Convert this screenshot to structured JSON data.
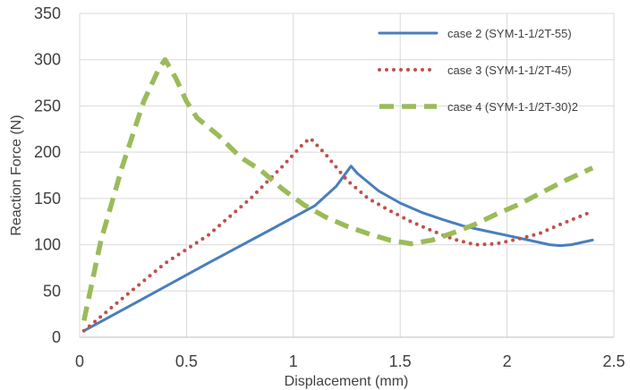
{
  "chart_data": {
    "type": "line",
    "title": "",
    "xlabel": "Displacement (mm)",
    "ylabel": "Reaction Force (N)",
    "xlim": [
      0,
      2.5
    ],
    "ylim": [
      0,
      350
    ],
    "xticks": [
      "0",
      "0.5",
      "1",
      "1.5",
      "2",
      "2.5"
    ],
    "yticks": [
      "0",
      "50",
      "100",
      "150",
      "200",
      "250",
      "300",
      "350"
    ],
    "grid": true,
    "legend_position": "top-right",
    "series": [
      {
        "name": "case 2 (SYM-1-1/2T-55)",
        "color": "#4a7ebb",
        "style": "solid",
        "x": [
          0.02,
          0.3,
          0.6,
          0.9,
          1.1,
          1.2,
          1.27,
          1.3,
          1.4,
          1.5,
          1.6,
          1.7,
          1.8,
          1.9,
          2.0,
          2.1,
          2.2,
          2.25,
          2.3,
          2.4
        ],
        "y": [
          7,
          42,
          80,
          117,
          142,
          163,
          185,
          177,
          158,
          145,
          135,
          127,
          120,
          115,
          110,
          105,
          100,
          99,
          100,
          105
        ]
      },
      {
        "name": "case 3 (SYM-1-1/2T-45)",
        "color": "#c0504d",
        "style": "dotted",
        "x": [
          0.02,
          0.2,
          0.4,
          0.6,
          0.8,
          0.95,
          1.05,
          1.08,
          1.15,
          1.25,
          1.35,
          1.45,
          1.55,
          1.65,
          1.75,
          1.85,
          1.95,
          2.05,
          2.15,
          2.25,
          2.4
        ],
        "y": [
          7,
          42,
          80,
          110,
          150,
          185,
          210,
          215,
          198,
          170,
          150,
          137,
          125,
          115,
          106,
          100,
          101,
          106,
          112,
          122,
          136
        ]
      },
      {
        "name": "case 4 (SYM-1-1/2T-30)2",
        "color": "#9bbb59",
        "style": "dashed",
        "x": [
          0.02,
          0.1,
          0.2,
          0.3,
          0.37,
          0.4,
          0.45,
          0.5,
          0.55,
          0.65,
          0.75,
          0.85,
          0.95,
          1.05,
          1.15,
          1.25,
          1.35,
          1.45,
          1.55,
          1.65,
          1.75,
          1.85,
          1.95,
          2.05,
          2.15,
          2.25,
          2.4
        ],
        "y": [
          18,
          105,
          185,
          255,
          290,
          300,
          280,
          255,
          237,
          218,
          195,
          180,
          160,
          143,
          130,
          120,
          112,
          105,
          101,
          105,
          113,
          122,
          133,
          143,
          155,
          167,
          183
        ]
      }
    ]
  }
}
